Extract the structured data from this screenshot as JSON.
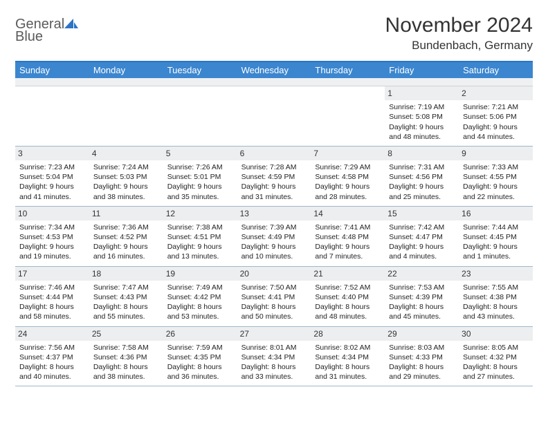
{
  "logo": {
    "word1": "General",
    "word2": "Blue"
  },
  "title": "November 2024",
  "subtitle": "Bundenbach, Germany",
  "colors": {
    "header_bar": "#3b86cf",
    "header_top_border": "#2b74c6",
    "datenum_bg": "#eceeef",
    "week_border": "#9fb7cc",
    "logo_gray": "#5b5b5b",
    "logo_blue": "#2b74c6"
  },
  "day_names": [
    "Sunday",
    "Monday",
    "Tuesday",
    "Wednesday",
    "Thursday",
    "Friday",
    "Saturday"
  ],
  "weeks": [
    [
      {
        "empty": true
      },
      {
        "empty": true
      },
      {
        "empty": true
      },
      {
        "empty": true
      },
      {
        "empty": true
      },
      {
        "date": "1",
        "sunrise": "7:19 AM",
        "sunset": "5:08 PM",
        "daylight_h": "9",
        "daylight_m": "48"
      },
      {
        "date": "2",
        "sunrise": "7:21 AM",
        "sunset": "5:06 PM",
        "daylight_h": "9",
        "daylight_m": "44"
      }
    ],
    [
      {
        "date": "3",
        "sunrise": "7:23 AM",
        "sunset": "5:04 PM",
        "daylight_h": "9",
        "daylight_m": "41"
      },
      {
        "date": "4",
        "sunrise": "7:24 AM",
        "sunset": "5:03 PM",
        "daylight_h": "9",
        "daylight_m": "38"
      },
      {
        "date": "5",
        "sunrise": "7:26 AM",
        "sunset": "5:01 PM",
        "daylight_h": "9",
        "daylight_m": "35"
      },
      {
        "date": "6",
        "sunrise": "7:28 AM",
        "sunset": "4:59 PM",
        "daylight_h": "9",
        "daylight_m": "31"
      },
      {
        "date": "7",
        "sunrise": "7:29 AM",
        "sunset": "4:58 PM",
        "daylight_h": "9",
        "daylight_m": "28"
      },
      {
        "date": "8",
        "sunrise": "7:31 AM",
        "sunset": "4:56 PM",
        "daylight_h": "9",
        "daylight_m": "25"
      },
      {
        "date": "9",
        "sunrise": "7:33 AM",
        "sunset": "4:55 PM",
        "daylight_h": "9",
        "daylight_m": "22"
      }
    ],
    [
      {
        "date": "10",
        "sunrise": "7:34 AM",
        "sunset": "4:53 PM",
        "daylight_h": "9",
        "daylight_m": "19"
      },
      {
        "date": "11",
        "sunrise": "7:36 AM",
        "sunset": "4:52 PM",
        "daylight_h": "9",
        "daylight_m": "16"
      },
      {
        "date": "12",
        "sunrise": "7:38 AM",
        "sunset": "4:51 PM",
        "daylight_h": "9",
        "daylight_m": "13"
      },
      {
        "date": "13",
        "sunrise": "7:39 AM",
        "sunset": "4:49 PM",
        "daylight_h": "9",
        "daylight_m": "10"
      },
      {
        "date": "14",
        "sunrise": "7:41 AM",
        "sunset": "4:48 PM",
        "daylight_h": "9",
        "daylight_m": "7"
      },
      {
        "date": "15",
        "sunrise": "7:42 AM",
        "sunset": "4:47 PM",
        "daylight_h": "9",
        "daylight_m": "4"
      },
      {
        "date": "16",
        "sunrise": "7:44 AM",
        "sunset": "4:45 PM",
        "daylight_h": "9",
        "daylight_m": "1"
      }
    ],
    [
      {
        "date": "17",
        "sunrise": "7:46 AM",
        "sunset": "4:44 PM",
        "daylight_h": "8",
        "daylight_m": "58"
      },
      {
        "date": "18",
        "sunrise": "7:47 AM",
        "sunset": "4:43 PM",
        "daylight_h": "8",
        "daylight_m": "55"
      },
      {
        "date": "19",
        "sunrise": "7:49 AM",
        "sunset": "4:42 PM",
        "daylight_h": "8",
        "daylight_m": "53"
      },
      {
        "date": "20",
        "sunrise": "7:50 AM",
        "sunset": "4:41 PM",
        "daylight_h": "8",
        "daylight_m": "50"
      },
      {
        "date": "21",
        "sunrise": "7:52 AM",
        "sunset": "4:40 PM",
        "daylight_h": "8",
        "daylight_m": "48"
      },
      {
        "date": "22",
        "sunrise": "7:53 AM",
        "sunset": "4:39 PM",
        "daylight_h": "8",
        "daylight_m": "45"
      },
      {
        "date": "23",
        "sunrise": "7:55 AM",
        "sunset": "4:38 PM",
        "daylight_h": "8",
        "daylight_m": "43"
      }
    ],
    [
      {
        "date": "24",
        "sunrise": "7:56 AM",
        "sunset": "4:37 PM",
        "daylight_h": "8",
        "daylight_m": "40"
      },
      {
        "date": "25",
        "sunrise": "7:58 AM",
        "sunset": "4:36 PM",
        "daylight_h": "8",
        "daylight_m": "38"
      },
      {
        "date": "26",
        "sunrise": "7:59 AM",
        "sunset": "4:35 PM",
        "daylight_h": "8",
        "daylight_m": "36"
      },
      {
        "date": "27",
        "sunrise": "8:01 AM",
        "sunset": "4:34 PM",
        "daylight_h": "8",
        "daylight_m": "33"
      },
      {
        "date": "28",
        "sunrise": "8:02 AM",
        "sunset": "4:34 PM",
        "daylight_h": "8",
        "daylight_m": "31"
      },
      {
        "date": "29",
        "sunrise": "8:03 AM",
        "sunset": "4:33 PM",
        "daylight_h": "8",
        "daylight_m": "29"
      },
      {
        "date": "30",
        "sunrise": "8:05 AM",
        "sunset": "4:32 PM",
        "daylight_h": "8",
        "daylight_m": "27"
      }
    ]
  ]
}
